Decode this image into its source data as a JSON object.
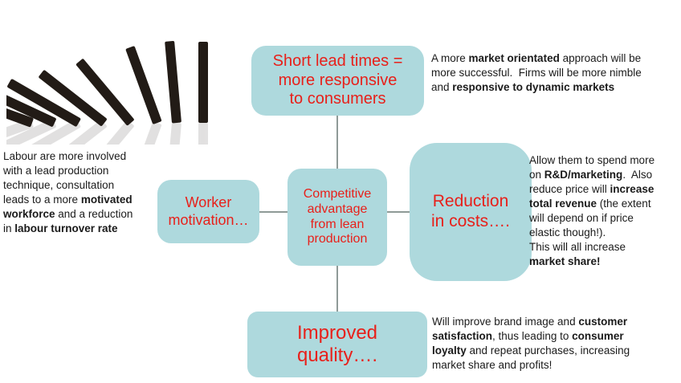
{
  "colors": {
    "box_fill": "#aed9dd",
    "box_text": "#e8201a",
    "connector": "#8f9a97",
    "body_text": "#1a1a1a",
    "domino": "#221b16"
  },
  "image": {
    "name": "falling-dominoes",
    "description": "Black dominoes toppling over in a chain from left to right with a faint reflection"
  },
  "diagram": {
    "center_box": {
      "label": "Competitive\nadvantage\nfrom lean\nproduction"
    },
    "top_box": {
      "label": "Short lead times =\nmore responsive\nto consumers"
    },
    "left_box": {
      "label": "Worker\nmotivation…"
    },
    "right_box": {
      "label": "Reduction\nin costs…."
    },
    "bottom_box": {
      "label": "Improved\nquality…."
    }
  },
  "notes": {
    "short_lead_times": {
      "segments": [
        {
          "t": "A more "
        },
        {
          "t": "market orientated",
          "b": true
        },
        {
          "t": " approach will be\nmore successful.  Firms will be more nimble\nand "
        },
        {
          "t": "responsive to dynamic markets",
          "b": true
        }
      ]
    },
    "worker_motivation": {
      "segments": [
        {
          "t": "Labour are more involved\nwith a lead production\ntechnique, consultation\nleads to a more "
        },
        {
          "t": "motivated\nworkforce",
          "b": true
        },
        {
          "t": " and a reduction\nin "
        },
        {
          "t": "labour turnover rate",
          "b": true
        }
      ]
    },
    "reduction_in_costs": {
      "segments": [
        {
          "t": "Allow them to spend more\non "
        },
        {
          "t": "R&D/marketing",
          "b": true
        },
        {
          "t": ".  Also\nreduce price will "
        },
        {
          "t": "increase\ntotal revenue",
          "b": true
        },
        {
          "t": " (the extent\nwill depend on if price\nelastic though!).\nThis will all increase\n"
        },
        {
          "t": "market share!",
          "b": true
        }
      ]
    },
    "improved_quality": {
      "segments": [
        {
          "t": "Will improve brand image and "
        },
        {
          "t": "customer\nsatisfaction",
          "b": true
        },
        {
          "t": ", thus leading to "
        },
        {
          "t": "consumer\nloyalty",
          "b": true
        },
        {
          "t": " and repeat purchases, increasing\nmarket share and profits!"
        }
      ]
    }
  }
}
